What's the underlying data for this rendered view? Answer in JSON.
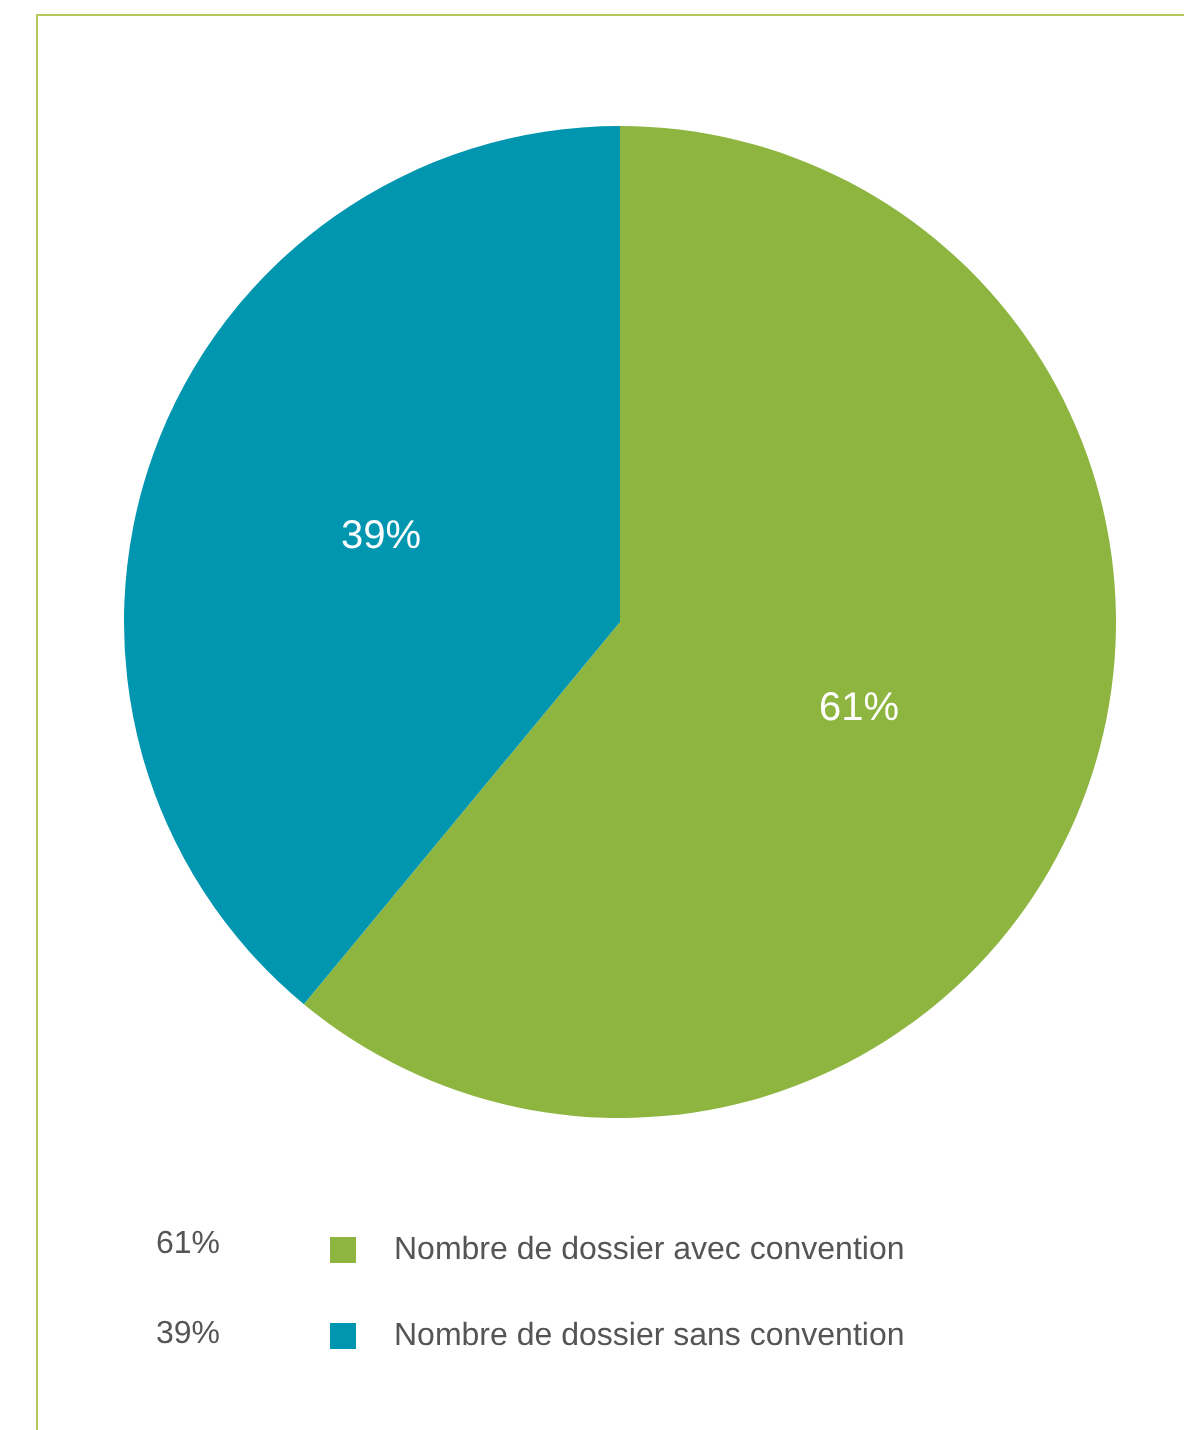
{
  "chart_data": {
    "type": "pie",
    "categories": [
      "Nombre de dossier avec convention",
      "Nombre de dossier sans convention"
    ],
    "values": [
      61,
      39
    ],
    "value_labels": [
      "61%",
      "39%"
    ],
    "colors": [
      "#8db540",
      "#0096b0"
    ],
    "legend": "bottom"
  }
}
